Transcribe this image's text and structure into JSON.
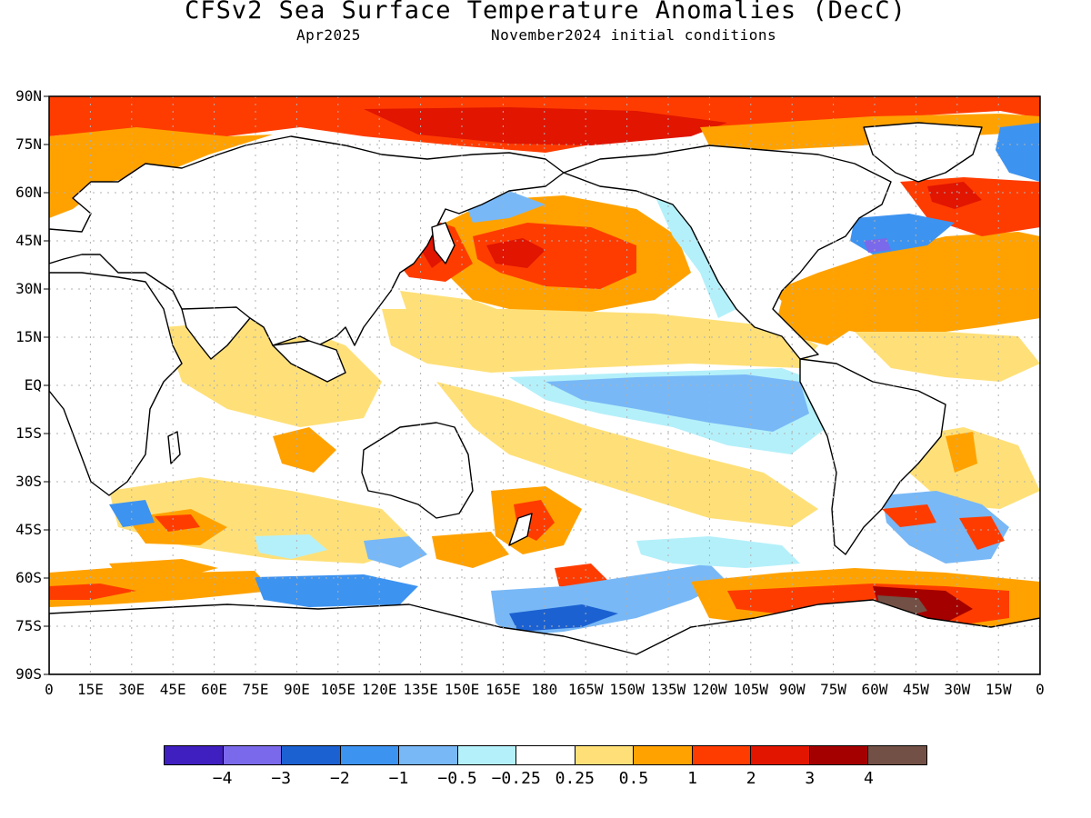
{
  "title": "CFSv2 Sea Surface Temperature Anomalies (DecC)",
  "subtitle_left": "Apr2025",
  "subtitle_right": "November2024 initial conditions",
  "map": {
    "lat_labels": [
      "90N",
      "75N",
      "60N",
      "45N",
      "30N",
      "15N",
      "EQ",
      "15S",
      "30S",
      "45S",
      "60S",
      "75S",
      "90S"
    ],
    "lon_labels": [
      "0",
      "15E",
      "30E",
      "45E",
      "60E",
      "75E",
      "90E",
      "105E",
      "120E",
      "135E",
      "150E",
      "165E",
      "180",
      "165W",
      "150W",
      "135W",
      "120W",
      "105W",
      "90W",
      "75W",
      "60W",
      "45W",
      "30W",
      "15W",
      "0"
    ],
    "land_color": "#ffffff",
    "coast_color": "#000000"
  },
  "legend": {
    "colors": [
      "#3f1fbf",
      "#7b69eb",
      "#1b61d1",
      "#3d93f0",
      "#78b8f6",
      "#b4f0fa",
      "#ffffff",
      "#ffe078",
      "#ffa200",
      "#ff3c00",
      "#e11500",
      "#a50000",
      "#735045"
    ],
    "labels": [
      "-4",
      "-3",
      "-2",
      "-1",
      "-0.5",
      "-0.25",
      "0.25",
      "0.5",
      "1",
      "2",
      "3",
      "4"
    ]
  }
}
